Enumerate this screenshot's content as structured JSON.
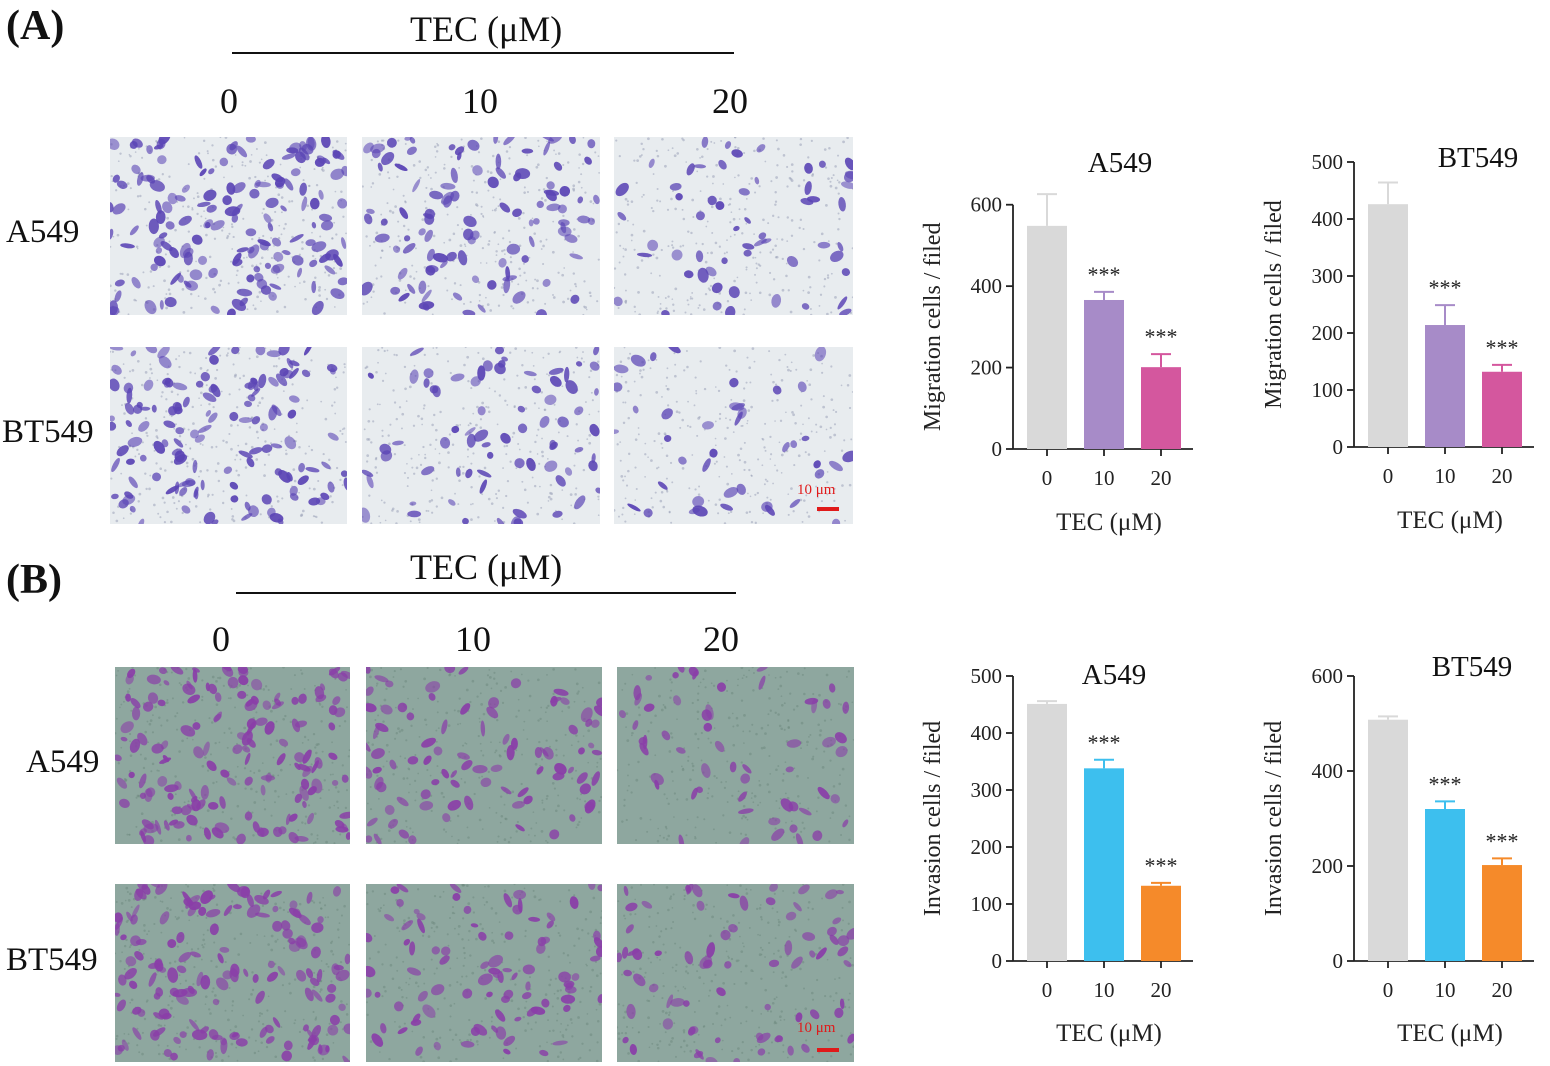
{
  "panels": [
    {
      "label": "(A)",
      "concentration_header": "TEC (μM)",
      "concentrations": [
        "0",
        "10",
        "20"
      ],
      "rows": [
        "A549",
        "BT549"
      ],
      "scale_bar": "10 μm",
      "stain": "crystal-violet-blue",
      "colors": {
        "cell": "#5b45b5",
        "membrane": "#e8ecef"
      }
    },
    {
      "label": "(B)",
      "concentration_header": "TEC (μM)",
      "concentrations": [
        "0",
        "10",
        "20"
      ],
      "rows": [
        "A549",
        "BT549"
      ],
      "scale_bar": "10 μm",
      "stain": "crystal-violet-on-matrigel",
      "colors": {
        "cell": "#8a3ea8",
        "membrane": "#8ea79f"
      }
    }
  ],
  "chart_data": [
    {
      "type": "bar",
      "title": "A549",
      "xlabel": "TEC (μM)",
      "ylabel": "Migration cells / filed",
      "categories": [
        "0",
        "10",
        "20"
      ],
      "values": [
        548,
        366,
        201
      ],
      "errors": [
        78,
        20,
        32
      ],
      "annotations": [
        "",
        "***",
        "***"
      ],
      "ylim": [
        0,
        700
      ],
      "yticks": [
        0,
        200,
        400,
        600
      ],
      "colors": [
        "#d9d9d9",
        "#a78bc8",
        "#d4579e"
      ]
    },
    {
      "type": "bar",
      "title": "BT549",
      "xlabel": "TEC (μM)",
      "ylabel": "Migration cells / filed",
      "categories": [
        "0",
        "10",
        "20"
      ],
      "values": [
        426,
        214,
        132
      ],
      "errors": [
        38,
        35,
        12
      ],
      "annotations": [
        "",
        "***",
        "***"
      ],
      "ylim": [
        0,
        500
      ],
      "yticks": [
        0,
        100,
        200,
        300,
        400,
        500
      ],
      "colors": [
        "#d9d9d9",
        "#a78bc8",
        "#d4579e"
      ]
    },
    {
      "type": "bar",
      "title": "A549",
      "xlabel": "TEC (μM)",
      "ylabel": "Invasion cells / filed",
      "categories": [
        "0",
        "10",
        "20"
      ],
      "values": [
        451,
        338,
        132
      ],
      "errors": [
        5,
        15,
        5
      ],
      "annotations": [
        "",
        "***",
        "***"
      ],
      "ylim": [
        0,
        500
      ],
      "yticks": [
        0,
        100,
        200,
        300,
        400,
        500
      ],
      "colors": [
        "#d9d9d9",
        "#3dbfee",
        "#f58a2a"
      ]
    },
    {
      "type": "bar",
      "title": "BT549",
      "xlabel": "TEC (μM)",
      "ylabel": "Invasion cells / filed",
      "categories": [
        "0",
        "10",
        "20"
      ],
      "values": [
        508,
        320,
        202
      ],
      "errors": [
        7,
        16,
        14
      ],
      "annotations": [
        "",
        "***",
        "***"
      ],
      "ylim": [
        0,
        600
      ],
      "yticks": [
        0,
        200,
        400,
        600
      ],
      "colors": [
        "#d9d9d9",
        "#3dbfee",
        "#f58a2a"
      ]
    }
  ]
}
